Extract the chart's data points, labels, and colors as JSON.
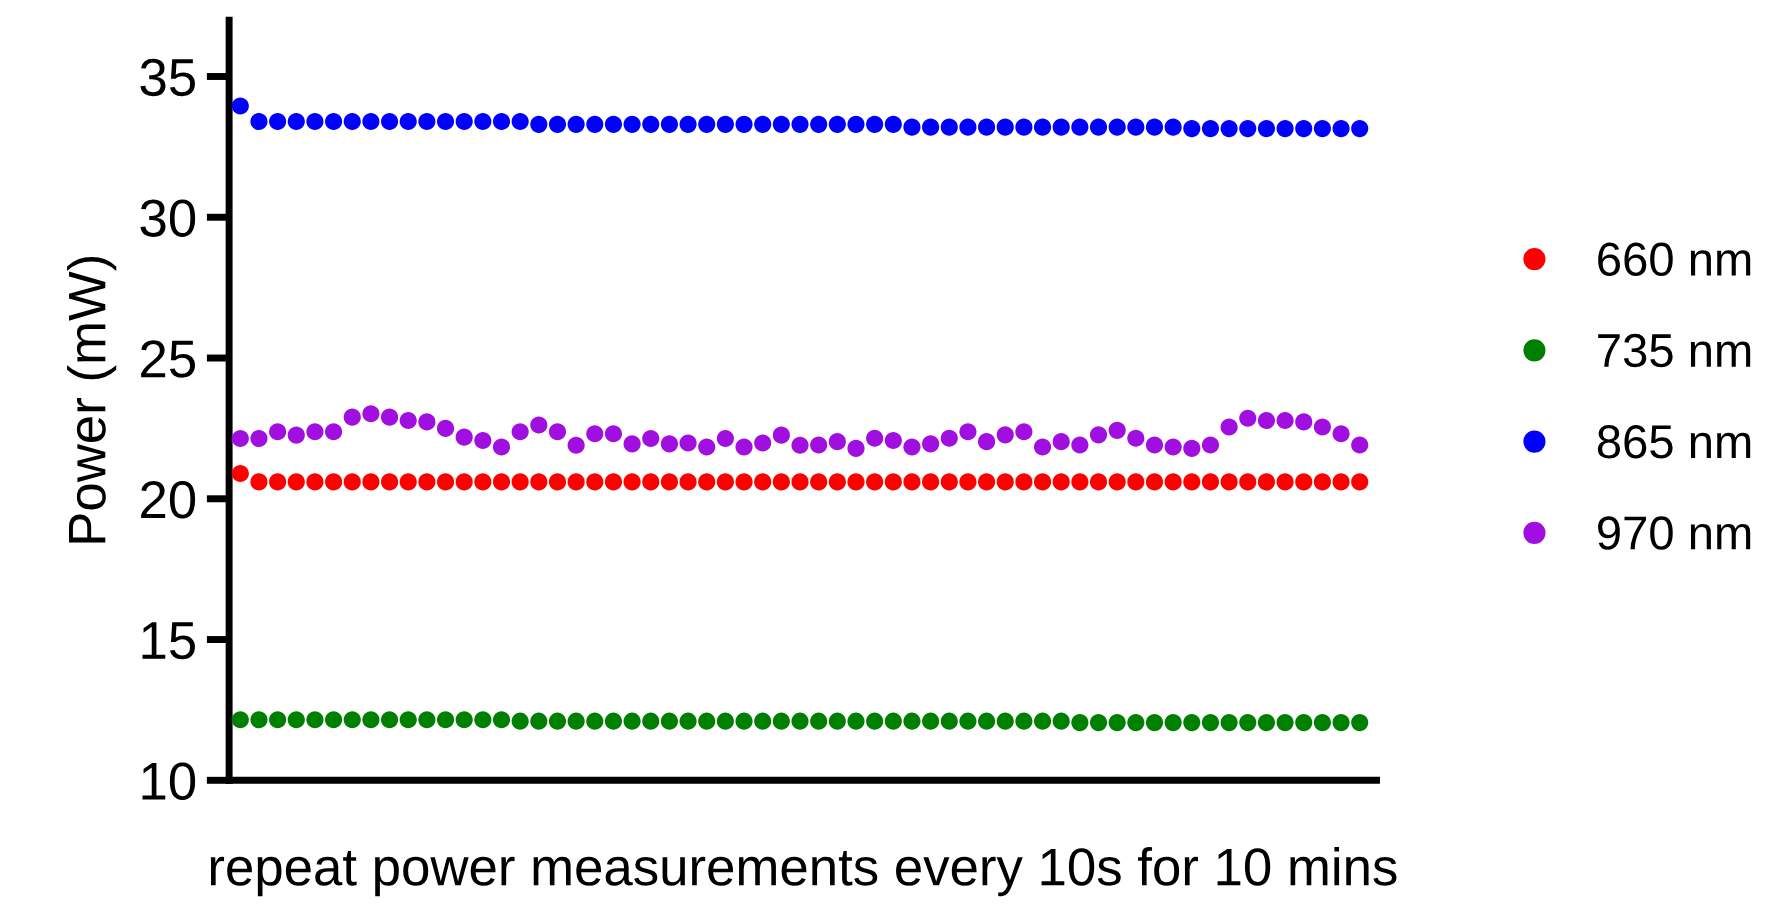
{
  "chart_data": {
    "type": "scatter",
    "xlabel": "repeat power measurements every 10s for 10 mins",
    "ylabel": "Power (mW)",
    "categories": [
      null,
      null,
      null,
      null,
      null,
      null,
      null,
      null,
      null,
      null,
      null,
      null,
      null,
      null,
      null,
      null,
      null,
      null,
      null,
      null,
      null,
      null,
      null,
      null,
      null,
      null,
      null,
      null,
      null,
      null,
      null,
      null,
      null,
      null,
      null,
      null,
      null,
      null,
      null,
      null,
      null,
      null,
      null,
      null,
      null,
      null,
      null,
      null,
      null,
      null,
      null,
      null,
      null,
      null,
      null,
      null,
      null,
      null,
      null,
      null,
      null
    ],
    "ylim": [
      10,
      37
    ],
    "yticks": [
      10,
      15,
      20,
      25,
      30,
      35
    ],
    "tick_labels": "y",
    "grid": false,
    "legend": "right",
    "marker": "circle",
    "series": [
      {
        "name": "660 nm",
        "color": "#ff0000",
        "values": [
          20.9,
          20.6,
          20.6,
          20.6,
          20.6,
          20.6,
          20.6,
          20.6,
          20.6,
          20.6,
          20.6,
          20.6,
          20.6,
          20.6,
          20.6,
          20.6,
          20.6,
          20.6,
          20.6,
          20.6,
          20.6,
          20.6,
          20.6,
          20.6,
          20.6,
          20.6,
          20.6,
          20.6,
          20.6,
          20.6,
          20.6,
          20.6,
          20.6,
          20.6,
          20.6,
          20.6,
          20.6,
          20.6,
          20.6,
          20.6,
          20.6,
          20.6,
          20.6,
          20.6,
          20.6,
          20.6,
          20.6,
          20.6,
          20.6,
          20.6,
          20.6,
          20.6,
          20.6,
          20.6,
          20.6,
          20.6,
          20.6,
          20.6,
          20.6,
          20.6,
          20.6
        ]
      },
      {
        "name": "735 nm",
        "color": "#008000",
        "values": [
          12.15,
          12.15,
          12.15,
          12.15,
          12.15,
          12.15,
          12.15,
          12.15,
          12.15,
          12.15,
          12.15,
          12.15,
          12.15,
          12.15,
          12.15,
          12.1,
          12.1,
          12.1,
          12.1,
          12.1,
          12.1,
          12.1,
          12.1,
          12.1,
          12.1,
          12.1,
          12.1,
          12.1,
          12.1,
          12.1,
          12.1,
          12.1,
          12.1,
          12.1,
          12.1,
          12.1,
          12.1,
          12.1,
          12.1,
          12.1,
          12.1,
          12.1,
          12.1,
          12.1,
          12.1,
          12.05,
          12.05,
          12.05,
          12.05,
          12.05,
          12.05,
          12.05,
          12.05,
          12.05,
          12.05,
          12.05,
          12.05,
          12.05,
          12.05,
          12.05,
          12.05
        ]
      },
      {
        "name": "865 nm",
        "color": "#0000ff",
        "values": [
          33.95,
          33.4,
          33.4,
          33.4,
          33.4,
          33.4,
          33.4,
          33.4,
          33.4,
          33.4,
          33.4,
          33.4,
          33.4,
          33.4,
          33.4,
          33.4,
          33.3,
          33.3,
          33.3,
          33.3,
          33.3,
          33.3,
          33.3,
          33.3,
          33.3,
          33.3,
          33.3,
          33.3,
          33.3,
          33.3,
          33.3,
          33.3,
          33.3,
          33.3,
          33.3,
          33.3,
          33.2,
          33.2,
          33.2,
          33.2,
          33.2,
          33.2,
          33.2,
          33.2,
          33.2,
          33.2,
          33.2,
          33.2,
          33.2,
          33.2,
          33.2,
          33.15,
          33.15,
          33.15,
          33.15,
          33.15,
          33.15,
          33.15,
          33.15,
          33.15,
          33.15
        ]
      },
      {
        "name": "970 nm",
        "color": "#a10ee0",
        "values": [
          22.14,
          22.14,
          22.38,
          22.26,
          22.38,
          22.38,
          22.9,
          23.02,
          22.9,
          22.78,
          22.73,
          22.5,
          22.19,
          22.07,
          21.84,
          22.38,
          22.62,
          22.38,
          21.9,
          22.31,
          22.31,
          21.95,
          22.14,
          21.95,
          21.98,
          21.84,
          22.14,
          21.84,
          21.98,
          22.26,
          21.9,
          21.91,
          22.03,
          21.79,
          22.15,
          22.07,
          21.84,
          21.95,
          22.15,
          22.38,
          22.03,
          22.27,
          22.38,
          21.84,
          22.03,
          21.91,
          22.27,
          22.43,
          22.15,
          21.91,
          21.84,
          21.79,
          21.91,
          22.55,
          22.86,
          22.78,
          22.78,
          22.73,
          22.55,
          22.31,
          21.91
        ]
      }
    ]
  }
}
